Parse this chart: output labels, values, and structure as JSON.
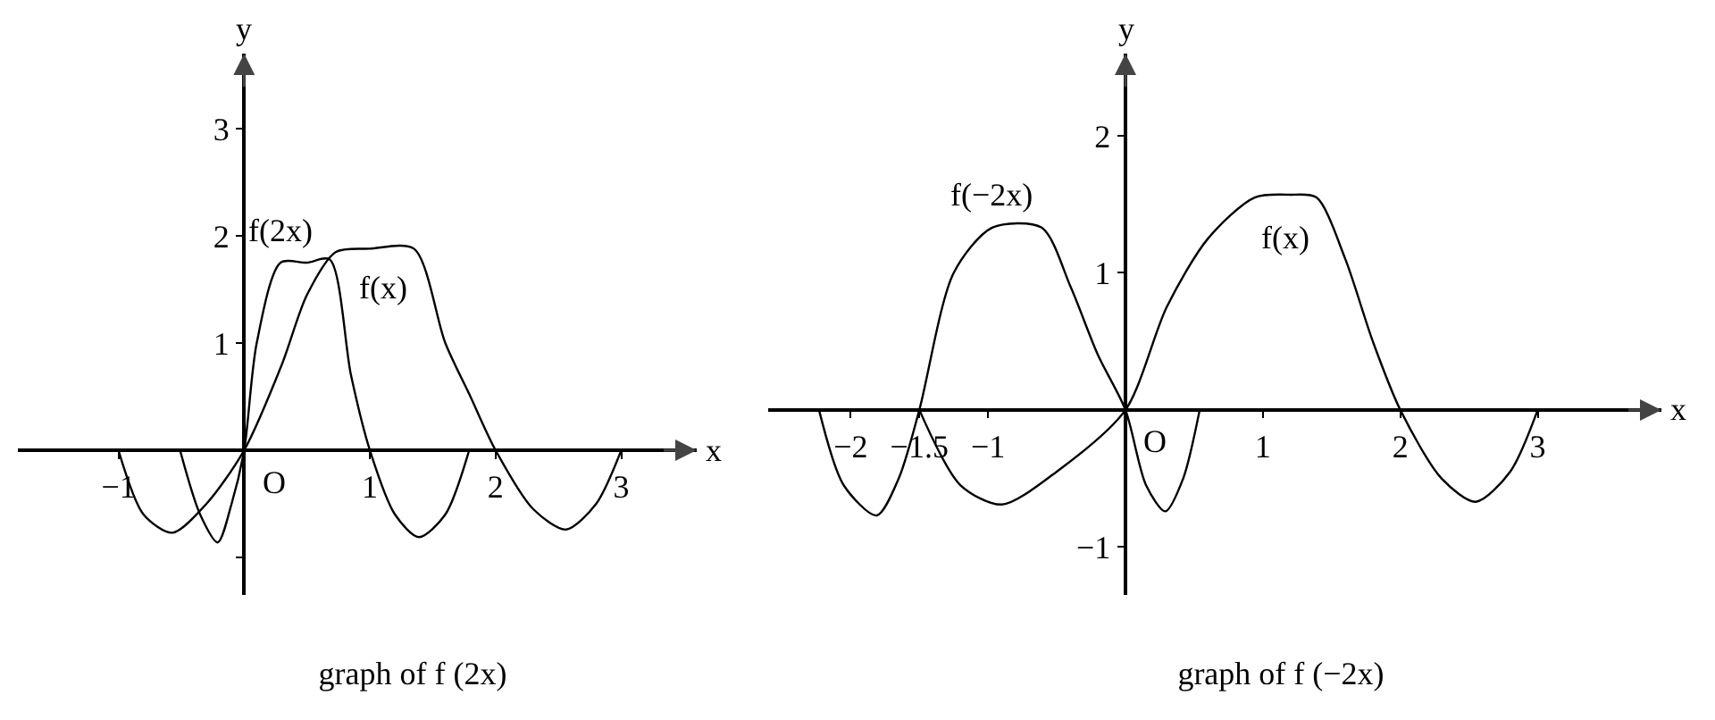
{
  "chart_data": [
    {
      "type": "line",
      "title": "graph of f (2x)",
      "xlabel": "x",
      "ylabel": "y",
      "xlim": [
        -1.8,
        3.6
      ],
      "ylim": [
        -1.35,
        3.7
      ],
      "xticks": [
        {
          "value": -1,
          "label": "−1"
        },
        1,
        2,
        3
      ],
      "yticks": [
        {
          "value": -1,
          "label": null
        },
        1,
        2,
        3
      ],
      "annotations": [
        {
          "text": "O",
          "x": 0,
          "y": 0
        }
      ],
      "series": [
        {
          "name": "f(x)",
          "color": "#000000",
          "x": [
            -1,
            -0.8,
            -0.57,
            -0.3,
            0,
            0.3,
            0.5,
            0.73,
            1,
            1.35,
            1.6,
            1.8,
            2,
            2.3,
            2.56,
            2.8,
            3
          ],
          "values": [
            0,
            -0.6,
            -0.77,
            -0.5,
            0,
            0.8,
            1.45,
            1.85,
            1.88,
            1.88,
            1.0,
            0.5,
            0,
            -0.55,
            -0.74,
            -0.5,
            0
          ]
        },
        {
          "name": "f(2x)",
          "color": "#000000",
          "x": [
            -0.51,
            -0.35,
            -0.21,
            -0.1,
            0,
            0.1,
            0.29,
            0.5,
            0.68,
            0.85,
            1,
            1.2,
            1.39,
            1.6,
            1.79
          ],
          "values": [
            0,
            -0.6,
            -0.86,
            -0.5,
            0,
            1.0,
            1.75,
            1.75,
            1.78,
            0.7,
            0,
            -0.6,
            -0.81,
            -0.6,
            0
          ]
        }
      ],
      "grid": false,
      "legend": false
    },
    {
      "type": "line",
      "title": "graph of f (−2x)",
      "xlabel": "x",
      "ylabel": "y",
      "xlim": [
        -2.6,
        3.9
      ],
      "ylim": [
        -1.35,
        2.6
      ],
      "xticks": [
        {
          "value": -2,
          "label": "−2"
        },
        {
          "value": -1.5,
          "label": "−1.5"
        },
        {
          "value": -1,
          "label": "−1"
        },
        1,
        2,
        3
      ],
      "yticks": [
        {
          "value": -1,
          "label": "−1"
        },
        1,
        2
      ],
      "annotations": [
        {
          "text": "O",
          "x": 0,
          "y": 0
        }
      ],
      "series": [
        {
          "name": "f(x)",
          "color": "#000000",
          "x": [
            -1.5,
            -1.2,
            -0.9,
            -0.5,
            0,
            0.3,
            0.6,
            0.94,
            1.2,
            1.39,
            1.6,
            1.8,
            2,
            2.3,
            2.55,
            2.8,
            3
          ],
          "values": [
            0,
            -0.55,
            -0.69,
            -0.45,
            0,
            0.75,
            1.25,
            1.55,
            1.57,
            1.55,
            1.1,
            0.5,
            0,
            -0.5,
            -0.67,
            -0.45,
            0
          ]
        },
        {
          "name": "f(−2x)",
          "color": "#000000",
          "x": [
            -2.23,
            -2.05,
            -1.81,
            -1.65,
            -1.5,
            -1.25,
            -0.97,
            -0.61,
            -0.4,
            -0.2,
            0,
            0.15,
            0.29,
            0.42,
            0.54
          ],
          "values": [
            0,
            -0.55,
            -0.77,
            -0.5,
            0,
            1.0,
            1.33,
            1.33,
            0.9,
            0.4,
            0,
            -0.55,
            -0.74,
            -0.5,
            0
          ]
        }
      ],
      "grid": false,
      "legend": false
    }
  ]
}
